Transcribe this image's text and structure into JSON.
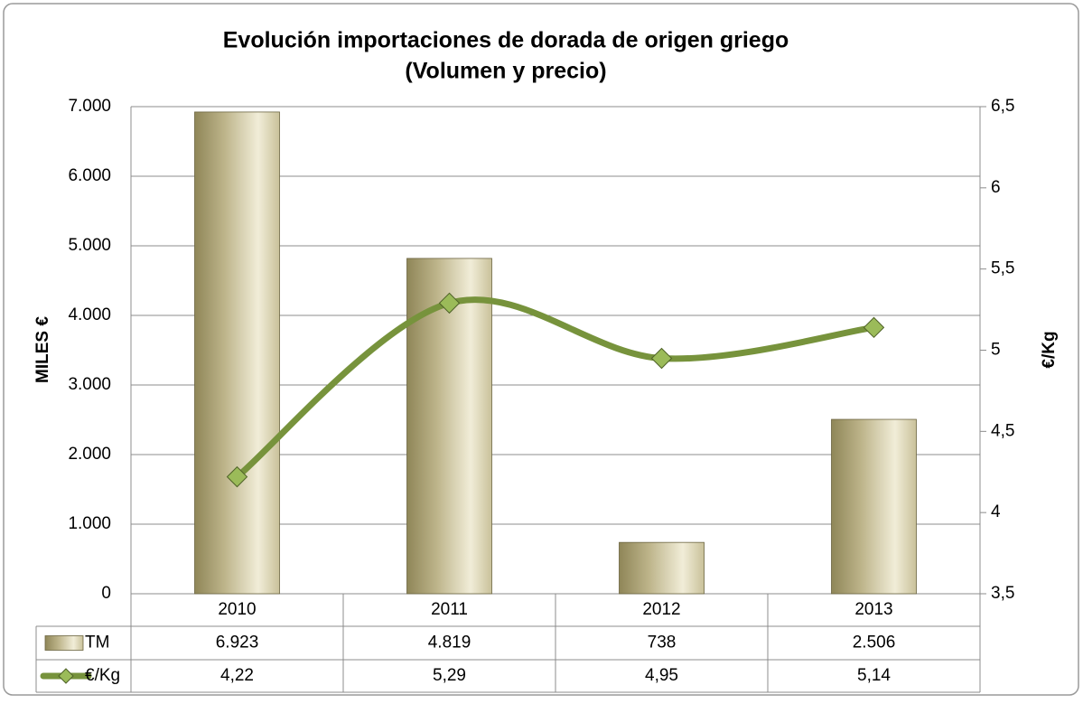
{
  "chart_data": {
    "type": "bar-line",
    "title": "Evolución importaciones de dorada de origen griego",
    "subtitle": "(Volumen y precio)",
    "y_label": "MILES €",
    "y2_label": "€/Kg",
    "categories": [
      "2010",
      "2011",
      "2012",
      "2013"
    ],
    "series": [
      {
        "name": "TM",
        "type": "bar",
        "color": "#b2a97a",
        "values": [
          6923,
          4819,
          738,
          2506
        ],
        "value_labels": [
          "6.923",
          "4.819",
          "738",
          "2.506"
        ]
      },
      {
        "name": "€/Kg",
        "type": "line",
        "axis": "y2",
        "color": "#77933c",
        "values": [
          4.22,
          5.29,
          4.95,
          5.14
        ],
        "value_labels": [
          "4,22",
          "5,29",
          "4,95",
          "5,14"
        ]
      }
    ],
    "ylim": [
      0,
      7000
    ],
    "yticks": [
      0,
      {
        "value": 1000,
        "label": "1.000"
      },
      {
        "value": 2000,
        "label": "2.000"
      },
      {
        "value": 3000,
        "label": "3.000"
      },
      {
        "value": 4000,
        "label": "4.000"
      },
      {
        "value": 5000,
        "label": "5.000"
      },
      {
        "value": 6000,
        "label": "6.000"
      },
      {
        "value": 7000,
        "label": "7.000"
      }
    ],
    "y2lim": [
      3.5,
      6.5
    ],
    "y2ticks": [
      {
        "value": 3.5,
        "label": "3,5"
      },
      4,
      {
        "value": 4.5,
        "label": "4,5"
      },
      5,
      {
        "value": 5.5,
        "label": "5,5"
      },
      6,
      {
        "value": 6.5,
        "label": "6,5"
      }
    ],
    "grid": true
  }
}
